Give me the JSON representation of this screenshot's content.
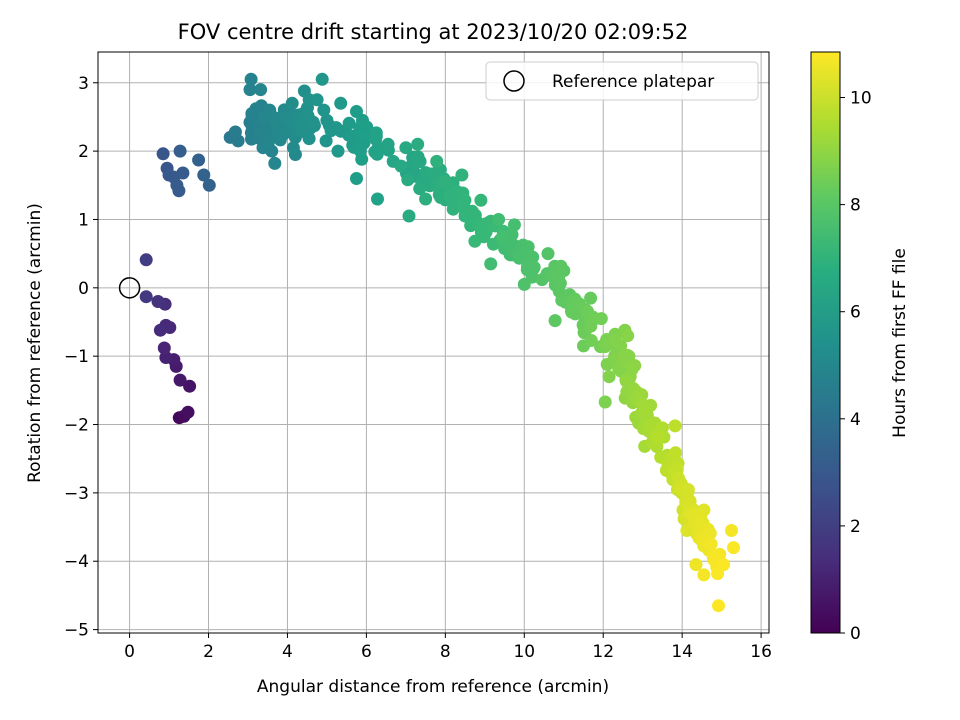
{
  "chart_data": {
    "type": "scatter",
    "title": "FOV centre drift starting at 2023/10/20 02:09:52",
    "xlabel": "Angular distance from reference (arcmin)",
    "ylabel": "Rotation from reference (arcmin)",
    "xlim": [
      -0.8,
      16.2
    ],
    "ylim": [
      -5.05,
      3.45
    ],
    "x_ticks": [
      0,
      2,
      4,
      6,
      8,
      10,
      12,
      14,
      16
    ],
    "y_ticks": [
      -5,
      -4,
      -3,
      -2,
      -1,
      0,
      1,
      2,
      3
    ],
    "grid": true,
    "legend": {
      "placement": "top-right",
      "entries": [
        "Reference platepar"
      ]
    },
    "colorbar": {
      "label": "Hours from first FF file",
      "range": [
        0,
        10.85
      ],
      "ticks": [
        0,
        2,
        4,
        6,
        8,
        10
      ],
      "colormap": "viridis"
    },
    "reference_point": {
      "x": 0,
      "y": 0,
      "label": "Reference platepar"
    },
    "seed_points": [
      [
        0.42,
        0.41,
        1.9
      ],
      [
        0.42,
        -0.13,
        1.8
      ],
      [
        0.72,
        -0.2,
        1.6
      ],
      [
        0.9,
        -0.24,
        1.5
      ],
      [
        0.78,
        -0.62,
        1.4
      ],
      [
        0.92,
        -0.55,
        1.3
      ],
      [
        1.02,
        -0.58,
        1.2
      ],
      [
        0.88,
        -0.88,
        1.1
      ],
      [
        0.92,
        -1.02,
        1.0
      ],
      [
        1.12,
        -1.05,
        0.9
      ],
      [
        1.18,
        -1.15,
        0.8
      ],
      [
        1.28,
        -1.35,
        0.7
      ],
      [
        1.52,
        -1.44,
        0.6
      ],
      [
        1.48,
        -1.82,
        0.4
      ],
      [
        1.38,
        -1.88,
        0.3
      ],
      [
        1.26,
        -1.9,
        0.2
      ],
      [
        0.85,
        1.96,
        2.9
      ],
      [
        0.95,
        1.75,
        2.9
      ],
      [
        1.0,
        1.65,
        3.0
      ],
      [
        1.12,
        1.62,
        3.0
      ],
      [
        1.28,
        2.0,
        3.2
      ],
      [
        1.35,
        1.68,
        3.1
      ],
      [
        1.2,
        1.5,
        3.1
      ],
      [
        1.25,
        1.42,
        3.1
      ],
      [
        1.75,
        1.87,
        3.3
      ],
      [
        1.88,
        1.65,
        3.4
      ],
      [
        2.02,
        1.5,
        3.4
      ],
      [
        2.55,
        2.2,
        4.4
      ],
      [
        2.68,
        2.28,
        4.5
      ],
      [
        2.75,
        2.15,
        4.5
      ],
      [
        3.08,
        3.05,
        4.8
      ],
      [
        3.05,
        2.9,
        4.8
      ],
      [
        3.32,
        2.9,
        4.9
      ],
      [
        3.1,
        2.55,
        4.8
      ],
      [
        3.05,
        2.42,
        4.7
      ],
      [
        3.42,
        2.5,
        5.0
      ],
      [
        3.55,
        2.6,
        5.0
      ],
      [
        3.3,
        2.25,
        4.9
      ],
      [
        3.5,
        2.15,
        5.0
      ],
      [
        3.38,
        2.05,
        4.9
      ],
      [
        3.6,
        2.0,
        4.9
      ],
      [
        3.68,
        1.82,
        5.0
      ],
      [
        3.75,
        2.35,
        5.1
      ],
      [
        4.05,
        2.58,
        5.2
      ],
      [
        4.12,
        2.7,
        5.3
      ],
      [
        4.35,
        2.4,
        5.3
      ],
      [
        4.2,
        2.2,
        5.2
      ],
      [
        4.15,
        2.05,
        5.2
      ],
      [
        4.2,
        1.95,
        5.1
      ],
      [
        4.43,
        2.88,
        5.4
      ],
      [
        4.55,
        2.75,
        5.5
      ],
      [
        4.75,
        2.75,
        5.6
      ],
      [
        4.88,
        3.05,
        5.7
      ],
      [
        4.92,
        2.6,
        5.6
      ],
      [
        5.0,
        2.45,
        5.6
      ],
      [
        4.98,
        2.15,
        5.6
      ],
      [
        5.35,
        2.7,
        5.8
      ],
      [
        5.28,
        2.0,
        5.8
      ],
      [
        5.75,
        2.58,
        6.0
      ],
      [
        5.9,
        2.45,
        6.0
      ],
      [
        6.0,
        2.28,
        6.0
      ],
      [
        5.75,
        1.6,
        6.0
      ],
      [
        5.88,
        1.88,
        6.1
      ],
      [
        6.28,
        1.3,
        6.2
      ],
      [
        6.25,
        2.22,
        6.2
      ],
      [
        6.3,
        2.05,
        6.2
      ],
      [
        6.55,
        2.1,
        6.3
      ],
      [
        6.68,
        1.85,
        6.4
      ],
      [
        6.88,
        1.78,
        6.5
      ],
      [
        7.0,
        2.05,
        6.5
      ],
      [
        7.05,
        1.58,
        6.6
      ],
      [
        7.08,
        1.05,
        6.6
      ],
      [
        7.3,
        2.1,
        6.7
      ],
      [
        7.35,
        1.45,
        6.7
      ],
      [
        7.5,
        1.3,
        6.8
      ],
      [
        7.78,
        1.85,
        6.9
      ],
      [
        8.0,
        1.55,
        6.9
      ],
      [
        8.12,
        1.35,
        7.0
      ],
      [
        8.2,
        1.15,
        7.0
      ],
      [
        8.42,
        1.65,
        7.0
      ],
      [
        8.5,
        1.05,
        7.0
      ],
      [
        8.9,
        1.28,
        7.2
      ],
      [
        8.75,
        0.68,
        7.3
      ],
      [
        9.0,
        0.9,
        7.3
      ],
      [
        9.15,
        0.35,
        7.5
      ],
      [
        9.35,
        1.0,
        7.5
      ],
      [
        9.45,
        0.75,
        7.6
      ],
      [
        9.75,
        0.92,
        7.6
      ],
      [
        10.1,
        0.6,
        7.7
      ],
      [
        10.0,
        0.05,
        7.8
      ],
      [
        10.25,
        0.3,
        7.8
      ],
      [
        10.45,
        0.12,
        7.9
      ],
      [
        10.6,
        0.5,
        7.9
      ],
      [
        10.78,
        -0.48,
        8.1
      ],
      [
        11.0,
        0.25,
        8.0
      ],
      [
        11.15,
        -0.1,
        8.1
      ],
      [
        11.55,
        -0.32,
        8.3
      ],
      [
        11.5,
        -0.85,
        8.4
      ],
      [
        11.68,
        -0.15,
        8.3
      ],
      [
        11.95,
        -0.45,
        8.5
      ],
      [
        12.05,
        -0.82,
        8.6
      ],
      [
        12.1,
        -1.12,
        8.7
      ],
      [
        12.3,
        -0.68,
        8.7
      ],
      [
        12.45,
        -1.22,
        8.8
      ],
      [
        12.55,
        -0.62,
        8.8
      ],
      [
        12.65,
        -1.0,
        8.9
      ],
      [
        12.62,
        -0.7,
        8.9
      ],
      [
        12.05,
        -1.67,
        8.7
      ],
      [
        12.15,
        -1.3,
        8.8
      ],
      [
        12.6,
        -1.52,
        9.0
      ],
      [
        12.75,
        -1.68,
        9.1
      ],
      [
        12.9,
        -1.98,
        9.2
      ],
      [
        13.2,
        -1.72,
        9.3
      ],
      [
        13.05,
        -2.32,
        9.4
      ],
      [
        13.4,
        -2.2,
        9.5
      ],
      [
        13.5,
        -2.05,
        9.6
      ],
      [
        13.62,
        -2.45,
        9.6
      ],
      [
        13.82,
        -2.02,
        9.8
      ],
      [
        13.8,
        -2.68,
        9.9
      ],
      [
        13.88,
        -2.95,
        10.0
      ],
      [
        14.02,
        -3.25,
        10.1
      ],
      [
        14.2,
        -3.12,
        10.2
      ],
      [
        14.12,
        -3.55,
        10.3
      ],
      [
        14.35,
        -3.45,
        10.4
      ],
      [
        14.5,
        -3.7,
        10.5
      ],
      [
        14.35,
        -4.05,
        10.6
      ],
      [
        14.55,
        -4.2,
        10.7
      ],
      [
        14.95,
        -3.9,
        10.7
      ],
      [
        15.05,
        -4.05,
        10.8
      ],
      [
        15.25,
        -3.55,
        10.7
      ],
      [
        15.3,
        -3.8,
        10.8
      ],
      [
        14.92,
        -4.65,
        10.85
      ],
      [
        14.05,
        -3.38,
        10.2
      ],
      [
        14.55,
        -3.25,
        10.4
      ]
    ],
    "bands": [
      {
        "t0": 4.7,
        "t1": 5.5,
        "x0": 3.05,
        "x1": 4.6,
        "c0": 2.35,
        "c1": 2.45,
        "slope": 0.0,
        "spread": 0.34,
        "n": 70
      },
      {
        "t0": 5.4,
        "t1": 6.3,
        "x0": 4.6,
        "x1": 6.5,
        "c0": 2.45,
        "c1": 2.05,
        "slope": 0.0,
        "spread": 0.3,
        "n": 24
      },
      {
        "t0": 6.3,
        "t1": 7.1,
        "x0": 7.0,
        "x1": 8.6,
        "c0": 1.85,
        "c1": 1.25,
        "slope": 0.0,
        "spread": 0.3,
        "n": 55
      },
      {
        "t0": 7.1,
        "t1": 8.1,
        "x0": 8.6,
        "x1": 11.0,
        "c0": 1.05,
        "c1": 0.05,
        "slope": 0.0,
        "spread": 0.28,
        "n": 55
      },
      {
        "t0": 8.1,
        "t1": 9.0,
        "x0": 11.0,
        "x1": 12.8,
        "c0": -0.15,
        "c1": -1.2,
        "slope": 0.0,
        "spread": 0.28,
        "n": 48
      },
      {
        "t0": 9.0,
        "t1": 10.0,
        "x0": 12.6,
        "x1": 14.0,
        "c0": -1.4,
        "c1": -2.9,
        "slope": 0.0,
        "spread": 0.3,
        "n": 55
      },
      {
        "t0": 10.0,
        "t1": 10.8,
        "x0": 13.9,
        "x1": 14.9,
        "c0": -2.85,
        "c1": -4.1,
        "slope": 0.0,
        "spread": 0.3,
        "n": 55
      }
    ]
  }
}
